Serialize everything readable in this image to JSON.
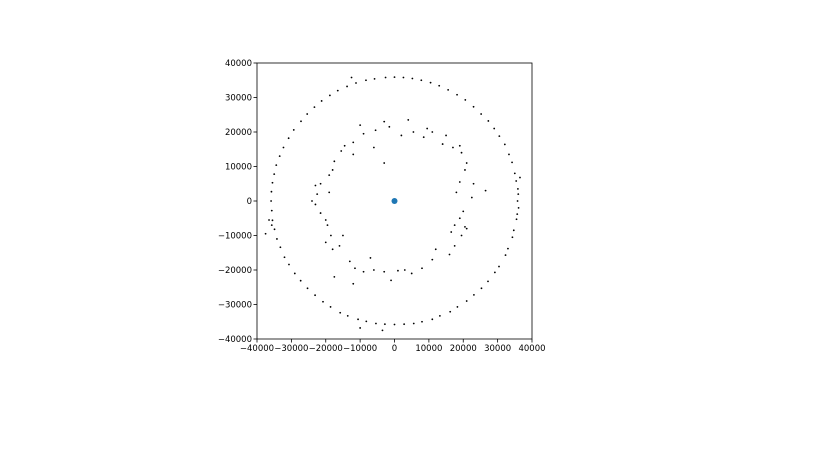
{
  "chart_data": {
    "type": "scatter",
    "title": "",
    "xlabel": "",
    "ylabel": "",
    "xlim": [
      -40000,
      40000
    ],
    "ylim": [
      -40000,
      40000
    ],
    "xticks": [
      -40000,
      -30000,
      -20000,
      -10000,
      0,
      10000,
      20000,
      30000,
      40000
    ],
    "yticks": [
      -40000,
      -30000,
      -20000,
      -10000,
      0,
      10000,
      20000,
      30000,
      40000
    ],
    "xtick_labels": [
      "−40000",
      "−30000",
      "−20000",
      "−10000",
      "0",
      "10000",
      "20000",
      "30000",
      "40000"
    ],
    "ytick_labels": [
      "−40000",
      "−30000",
      "−20000",
      "−10000",
      "0",
      "10000",
      "20000",
      "30000",
      "40000"
    ],
    "grid": false,
    "legend": false,
    "series": [
      {
        "marker_color": "#000000",
        "points": [
          [
            35800,
            0
          ],
          [
            35400,
            5800
          ],
          [
            34200,
            11200
          ],
          [
            32100,
            16400
          ],
          [
            29000,
            21000
          ],
          [
            25200,
            25200
          ],
          [
            20600,
            29300
          ],
          [
            15600,
            32200
          ],
          [
            10500,
            34300
          ],
          [
            5200,
            35500
          ],
          [
            0,
            35900
          ],
          [
            -5800,
            35400
          ],
          [
            -11200,
            34200
          ],
          [
            -16500,
            32000
          ],
          [
            -21200,
            29000
          ],
          [
            -25400,
            25200
          ],
          [
            -29300,
            20600
          ],
          [
            -32300,
            15500
          ],
          [
            -34400,
            10400
          ],
          [
            -35500,
            5300
          ],
          [
            -35900,
            0
          ],
          [
            -35500,
            -5600
          ],
          [
            -34200,
            -11000
          ],
          [
            -32000,
            -16300
          ],
          [
            -29000,
            -21000
          ],
          [
            -25300,
            -25300
          ],
          [
            -20800,
            -29200
          ],
          [
            -15800,
            -32400
          ],
          [
            -10600,
            -34300
          ],
          [
            -5400,
            -35500
          ],
          [
            0,
            -35800
          ],
          [
            5600,
            -35500
          ],
          [
            11000,
            -34300
          ],
          [
            16200,
            -32100
          ],
          [
            21000,
            -29000
          ],
          [
            25300,
            -25300
          ],
          [
            29200,
            -20700
          ],
          [
            32300,
            -15700
          ],
          [
            34300,
            -10500
          ],
          [
            35500,
            -5300
          ],
          [
            36000,
            2000
          ],
          [
            36100,
            -2000
          ],
          [
            35900,
            3500
          ],
          [
            35700,
            -3800
          ],
          [
            35000,
            8000
          ],
          [
            34700,
            -8500
          ],
          [
            33300,
            13500
          ],
          [
            33000,
            -13800
          ],
          [
            30500,
            18800
          ],
          [
            30400,
            -19000
          ],
          [
            27300,
            23200
          ],
          [
            27200,
            -23300
          ],
          [
            23000,
            27300
          ],
          [
            23100,
            -27200
          ],
          [
            18200,
            30800
          ],
          [
            18300,
            -30700
          ],
          [
            13000,
            33400
          ],
          [
            13200,
            -33300
          ],
          [
            7800,
            35000
          ],
          [
            8000,
            -35000
          ],
          [
            2600,
            35800
          ],
          [
            2800,
            -35700
          ],
          [
            -2600,
            35800
          ],
          [
            -2800,
            -35700
          ],
          [
            -8300,
            35000
          ],
          [
            -8200,
            -34900
          ],
          [
            -13800,
            33200
          ],
          [
            -13600,
            -33300
          ],
          [
            -18800,
            30600
          ],
          [
            -18600,
            -30700
          ],
          [
            -23300,
            27200
          ],
          [
            -23100,
            -27300
          ],
          [
            -27200,
            23100
          ],
          [
            -27300,
            -23100
          ],
          [
            -30800,
            18200
          ],
          [
            -30700,
            -18400
          ],
          [
            -33400,
            13000
          ],
          [
            -33200,
            -13400
          ],
          [
            -35000,
            7800
          ],
          [
            -34900,
            -8200
          ],
          [
            -35800,
            2700
          ],
          [
            -35700,
            -2800
          ],
          [
            -12500,
            35800
          ],
          [
            36500,
            6800
          ],
          [
            -37500,
            -9500
          ],
          [
            -10000,
            -36800
          ],
          [
            -3500,
            -37500
          ],
          [
            -36500,
            -5500
          ],
          [
            -35700,
            -7000
          ]
        ]
      },
      {
        "marker_color": "#000000",
        "points": [
          [
            21000,
            11000
          ],
          [
            23000,
            5000
          ],
          [
            22500,
            1000
          ],
          [
            20000,
            -3000
          ],
          [
            20500,
            -7500
          ],
          [
            19500,
            -10000
          ],
          [
            17500,
            -13000
          ],
          [
            16000,
            -15500
          ],
          [
            11000,
            -17000
          ],
          [
            8000,
            -19500
          ],
          [
            5000,
            -21000
          ],
          [
            1000,
            -20200
          ],
          [
            -3000,
            -20500
          ],
          [
            -6000,
            -20000
          ],
          [
            -9000,
            -20500
          ],
          [
            -13000,
            -17500
          ],
          [
            -16000,
            -13000
          ],
          [
            -18500,
            -10000
          ],
          [
            -19500,
            -7000
          ],
          [
            -21500,
            -3500
          ],
          [
            -23000,
            -1000
          ],
          [
            -22500,
            2000
          ],
          [
            -21500,
            5000
          ],
          [
            -19000,
            7500
          ],
          [
            -17500,
            11500
          ],
          [
            -15500,
            14500
          ],
          [
            -12000,
            17000
          ],
          [
            -9000,
            19500
          ],
          [
            -5500,
            20500
          ],
          [
            -1500,
            21500
          ],
          [
            2000,
            19000
          ],
          [
            5500,
            20000
          ],
          [
            8500,
            18500
          ],
          [
            11000,
            20000
          ],
          [
            14000,
            16500
          ],
          [
            17000,
            15500
          ],
          [
            19500,
            14000
          ],
          [
            20500,
            9000
          ],
          [
            19000,
            5500
          ],
          [
            18000,
            2500
          ],
          [
            19000,
            -5000
          ],
          [
            16500,
            -9000
          ],
          [
            12000,
            -14000
          ],
          [
            -11500,
            -19500
          ],
          [
            -18000,
            -14000
          ],
          [
            -20000,
            -12000
          ],
          [
            -24000,
            0
          ],
          [
            -23000,
            4500
          ],
          [
            -18000,
            9000
          ],
          [
            -14500,
            16000
          ],
          [
            -10000,
            22000
          ],
          [
            -3000,
            23000
          ],
          [
            4000,
            23500
          ],
          [
            9500,
            21000
          ],
          [
            15000,
            19000
          ],
          [
            19000,
            16000
          ],
          [
            26500,
            3000
          ],
          [
            -12000,
            -24000
          ],
          [
            -17500,
            -22000
          ],
          [
            -1000,
            -23000
          ],
          [
            -3000,
            11000
          ],
          [
            -6000,
            15500
          ],
          [
            -12000,
            13500
          ],
          [
            17500,
            -7000
          ],
          [
            21000,
            -8000
          ],
          [
            3000,
            -20000
          ],
          [
            -7000,
            -16500
          ],
          [
            -15000,
            -10000
          ],
          [
            -20000,
            -5500
          ],
          [
            -19000,
            2500
          ]
        ]
      },
      {
        "marker_color": "#1f77b4",
        "points": [
          [
            0,
            0
          ]
        ]
      }
    ]
  }
}
